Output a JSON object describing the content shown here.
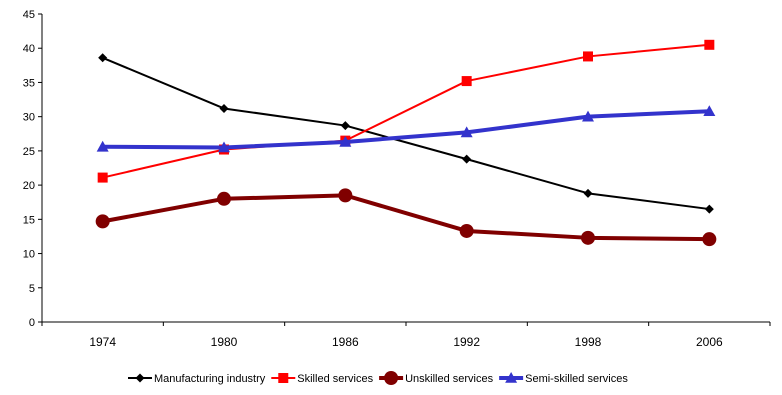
{
  "chart_data": {
    "type": "line",
    "categories": [
      "1974",
      "1980",
      "1986",
      "1992",
      "1998",
      "2006"
    ],
    "ylim": [
      0,
      45
    ],
    "yticks": [
      0,
      5,
      10,
      15,
      20,
      25,
      30,
      35,
      40,
      45
    ],
    "grid": false,
    "legend_position": "bottom",
    "series": [
      {
        "name": "Manufacturing industry",
        "color": "#000000",
        "marker": "diamond",
        "values": [
          38.6,
          31.2,
          28.7,
          23.8,
          18.8,
          16.5
        ]
      },
      {
        "name": "Skilled services",
        "color": "#ff0000",
        "marker": "square",
        "values": [
          21.1,
          25.2,
          26.5,
          35.2,
          38.8,
          40.5
        ]
      },
      {
        "name": "Unskilled services",
        "color": "#800000",
        "marker": "circle",
        "values": [
          14.7,
          18.0,
          18.5,
          13.3,
          12.3,
          12.1
        ]
      },
      {
        "name": "Semi-skilled services",
        "color": "#3333cc",
        "marker": "triangle",
        "values": [
          25.6,
          25.5,
          26.3,
          27.7,
          30.0,
          30.8
        ]
      }
    ]
  }
}
